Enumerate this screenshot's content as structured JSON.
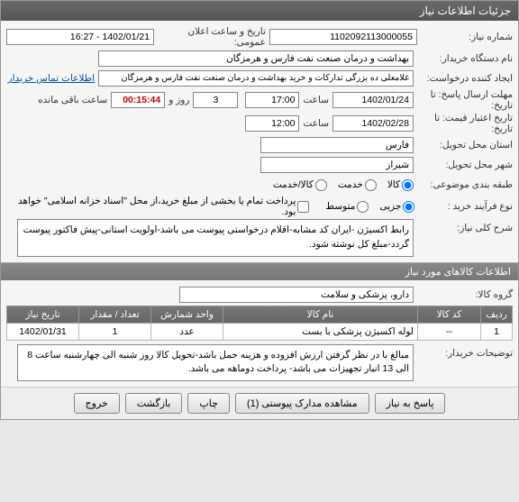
{
  "title": "جزئیات اطلاعات نیاز",
  "fields": {
    "need_no_lbl": "شماره نیاز:",
    "need_no": "1102092113000055",
    "announce_lbl": "تاریخ و ساعت اعلان عمومی:",
    "announce": "1402/01/21 - 16:27",
    "buyer_org_lbl": "نام دستگاه خریدار:",
    "buyer_org": "بهداشت و درمان صنعت نفت فارس و هرمزگان",
    "requester_lbl": "ایجاد کننده درخواست:",
    "requester": "غلامعلی ده بزرگی تدارکات و خرید بهداشت و درمان صنعت نفت فارس و هرمزگان",
    "contact_link": "اطلاعات تماس خریدار",
    "deadline_lbl": "مهلت ارسال پاسخ:",
    "deadline_to_lbl": "تا تاریخ:",
    "deadline_date": "1402/01/24",
    "time_lbl": "ساعت",
    "deadline_time": "17:00",
    "days_lbl": "روز و",
    "days": "3",
    "remain_lbl": "ساعت باقی مانده",
    "remain": "00:15:44",
    "validity_lbl": "تاریخ اعتبار",
    "validity_to_lbl": "قیمت: تا تاریخ:",
    "validity_date": "1402/02/28",
    "validity_time": "12:00",
    "delivery_prov_lbl": "استان محل تحویل:",
    "delivery_prov": "فارس",
    "delivery_city_lbl": "شهر محل تحویل:",
    "delivery_city": "شیراز",
    "need_class_lbl": "طبقه بندی موضوعی:",
    "need_class_goods": "کالا",
    "need_class_service": "خدمت",
    "need_class_both": "کالا/خدمت",
    "purchase_proc_lbl": "نوع فرآیند خرید :",
    "proc_partial": "جزیی",
    "proc_medium": "متوسط",
    "proc_note": "پرداخت تمام یا بخشی از مبلغ خرید،از محل \"اسناد خزانه اسلامی\" خواهد بود.",
    "need_desc_lbl": "شرح کلی نیاز:",
    "need_desc": "رابط اکسیژن    -ایران کد مشابه-اقلام درخواستی پیوست می باشد-اولویت استانی-پیش فاکتور پیوست گردد-مبلغ کل نوشته شود.",
    "goods_section": "اطلاعات کالاهای مورد نیاز",
    "goods_group_lbl": "گروه کالا:",
    "goods_group": "دارو، پزشکی و سلامت",
    "buyer_notes_lbl": "توضیحات خریدار:",
    "buyer_notes": "مبالغ با در نظر گرفتن ارزش افزوده و هزینه حمل باشد-تحویل کالا روز شنبه الی چهارشنبه ساعت 8 الی 13 انبار تجهیزات می باشد- پرداخت دوماهه می باشد."
  },
  "table": {
    "headers": {
      "row": "ردیف",
      "code": "کد کالا",
      "name": "نام کالا",
      "unit": "واحد شمارش",
      "qty": "تعداد / مقدار",
      "date": "تاریخ نیاز"
    },
    "rows": [
      {
        "row": "1",
        "code": "--",
        "name": "لوله اکسیژن پزشکی با بست",
        "unit": "عدد",
        "qty": "1",
        "date": "1402/01/31"
      }
    ]
  },
  "buttons": {
    "respond": "پاسخ به نیاز",
    "attachments": "مشاهده مدارک پیوستی (1)",
    "print": "چاپ",
    "back": "بازگشت",
    "exit": "خروج"
  }
}
